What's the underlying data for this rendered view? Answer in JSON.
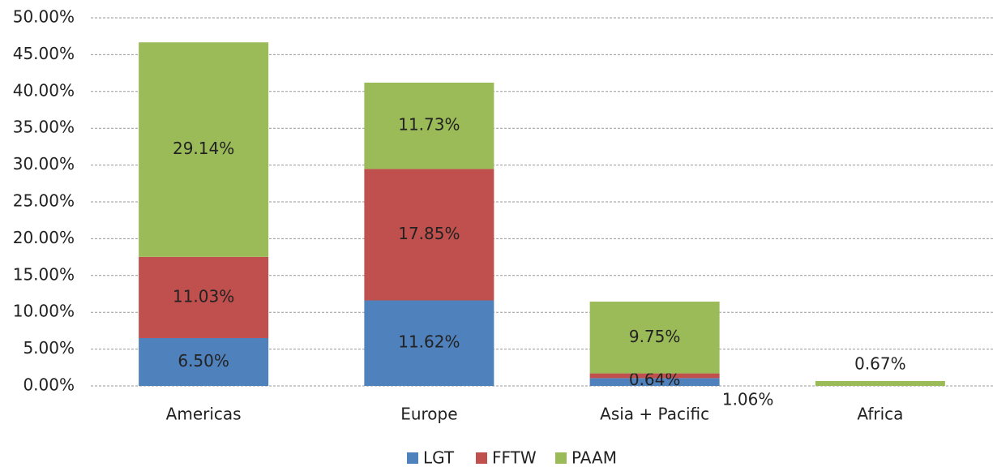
{
  "chart_data": {
    "type": "stacked_bar",
    "categories": [
      "Americas",
      "Europe",
      "Asia + Pacific",
      "Africa"
    ],
    "series": [
      {
        "name": "LGT",
        "color": "#4f81bd",
        "values": [
          6.5,
          11.62,
          1.06,
          null
        ],
        "value_labels": [
          "6.50%",
          "11.62%",
          "1.06%",
          null
        ]
      },
      {
        "name": "FFTW",
        "color": "#c0504d",
        "values": [
          11.03,
          17.85,
          0.64,
          null
        ],
        "value_labels": [
          "11.03%",
          "17.85%",
          "0.64%",
          null
        ]
      },
      {
        "name": "PAAM",
        "color": "#9bbb59",
        "values": [
          29.14,
          11.73,
          9.75,
          0.67
        ],
        "value_labels": [
          "29.14%",
          "11.73%",
          "9.75%",
          "0.67%"
        ]
      }
    ],
    "ylim": [
      0,
      50
    ],
    "yticks": [
      {
        "value": 0,
        "label": "0.00%"
      },
      {
        "value": 5,
        "label": "5.00%"
      },
      {
        "value": 10,
        "label": "10.00%"
      },
      {
        "value": 15,
        "label": "15.00%"
      },
      {
        "value": 20,
        "label": "20.00%"
      },
      {
        "value": 25,
        "label": "25.00%"
      },
      {
        "value": 30,
        "label": "30.00%"
      },
      {
        "value": 35,
        "label": "35.00%"
      },
      {
        "value": 40,
        "label": "40.00%"
      },
      {
        "value": 45,
        "label": "45.00%"
      },
      {
        "value": 50,
        "label": "50.00%"
      }
    ],
    "grid": true,
    "legend": "bottom"
  }
}
